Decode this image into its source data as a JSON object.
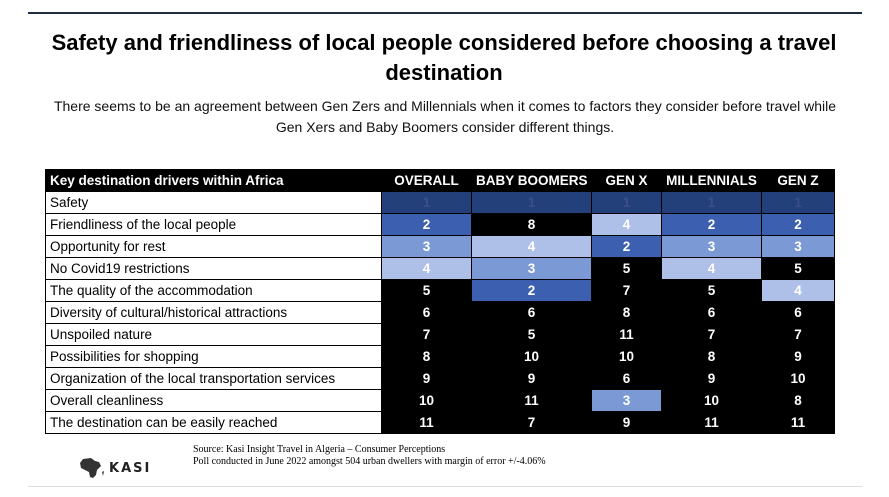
{
  "title": "Safety and friendliness of local people considered before choosing a travel destination",
  "subtitle": "There seems to be an agreement between Gen Zers and Millennials when it comes to factors they consider before travel while Gen Xers and Baby Boomers consider different things.",
  "table": {
    "headers": [
      "Key destination drivers within Africa",
      "OVERALL",
      "BABY BOOMERS",
      "GEN X",
      "MILLENNIALS",
      "GEN Z"
    ],
    "rows": [
      {
        "label": "Safety",
        "ranks": [
          "1",
          "1",
          "1",
          "1",
          "1"
        ]
      },
      {
        "label": "Friendliness of the local people",
        "ranks": [
          "2",
          "8",
          "4",
          "2",
          "2"
        ]
      },
      {
        "label": "Opportunity for rest",
        "ranks": [
          "3",
          "4",
          "2",
          "3",
          "3"
        ]
      },
      {
        "label": "No Covid19 restrictions",
        "ranks": [
          "4",
          "3",
          "5",
          "4",
          "5"
        ]
      },
      {
        "label": "The quality of the accommodation",
        "ranks": [
          "5",
          "2",
          "7",
          "5",
          "4"
        ]
      },
      {
        "label": "Diversity of cultural/historical attractions",
        "ranks": [
          "6",
          "6",
          "8",
          "6",
          "6"
        ]
      },
      {
        "label": "Unspoiled nature",
        "ranks": [
          "7",
          "5",
          "11",
          "7",
          "7"
        ]
      },
      {
        "label": "Possibilities for shopping",
        "ranks": [
          "8",
          "10",
          "10",
          "8",
          "9"
        ]
      },
      {
        "label": "Organization of the local transportation services",
        "ranks": [
          "9",
          "9",
          "6",
          "9",
          "10"
        ]
      },
      {
        "label": "Overall cleanliness",
        "ranks": [
          "10",
          "11",
          "3",
          "10",
          "8"
        ]
      },
      {
        "label": "The destination can be easily reached",
        "ranks": [
          "11",
          "7",
          "9",
          "11",
          "11"
        ]
      }
    ],
    "rank_colors": {
      "1": "#23407a",
      "2": "#3d5fb0",
      "3": "#7b99d4",
      "4": "#aec0e8",
      "other": "#000000"
    }
  },
  "source": {
    "line1": "Source: Kasi Insight Travel in Algeria – Consumer Perceptions",
    "line2": "Poll conducted in June 2022 amongst 504 urban dwellers with margin of error +/-4.06%"
  },
  "logo": {
    "text": "KASI",
    "icon": "africa-map-icon"
  }
}
